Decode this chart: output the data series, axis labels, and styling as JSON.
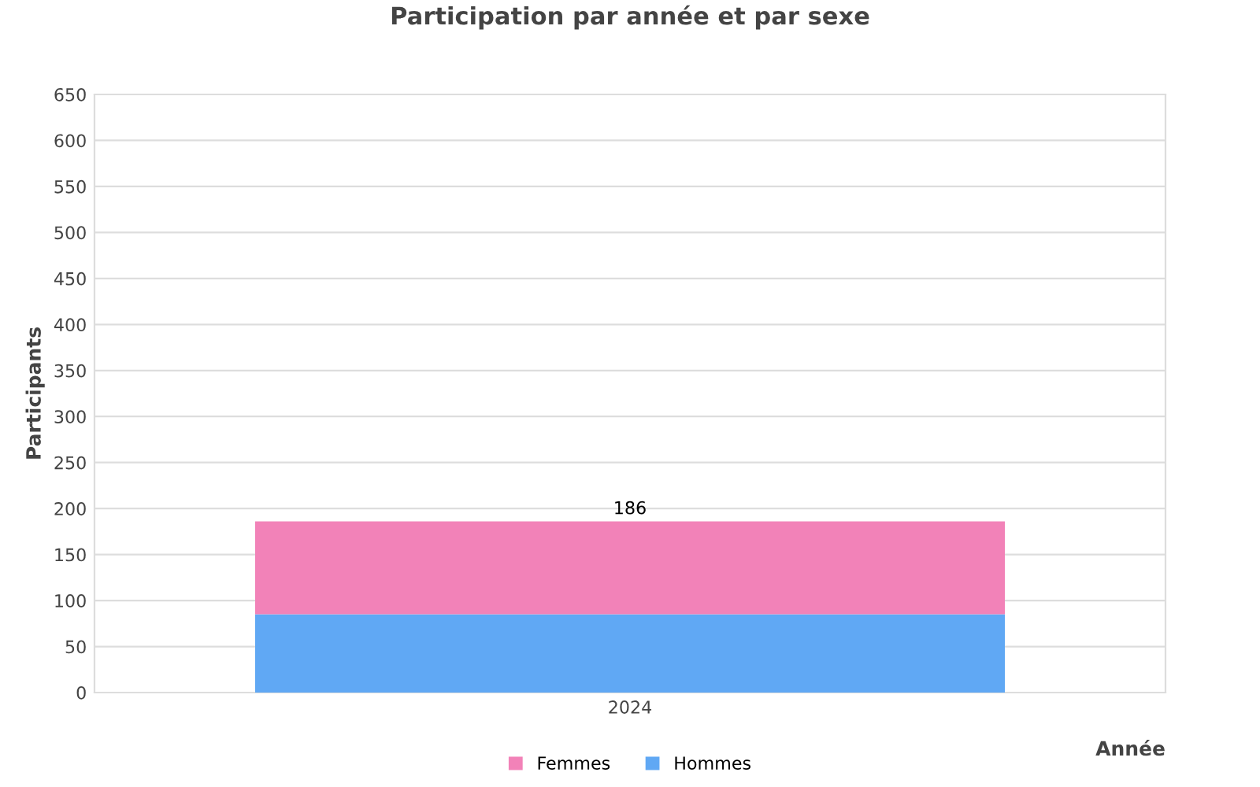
{
  "chart_data": {
    "type": "bar",
    "title": "Participation par année et par sexe",
    "xlabel": "Année",
    "ylabel": "Participants",
    "categories": [
      "2024"
    ],
    "stacked": true,
    "series": [
      {
        "name": "Hommes",
        "color": "#60a8f4",
        "values": [
          85
        ]
      },
      {
        "name": "Femmes",
        "color": "#f282b8",
        "values": [
          101
        ]
      }
    ],
    "totals": [
      "186"
    ],
    "ylim": [
      0,
      650
    ],
    "yticks": [
      0,
      50,
      100,
      150,
      200,
      250,
      300,
      350,
      400,
      450,
      500,
      550,
      600,
      650
    ],
    "grid": "y",
    "legend": "bottom"
  }
}
